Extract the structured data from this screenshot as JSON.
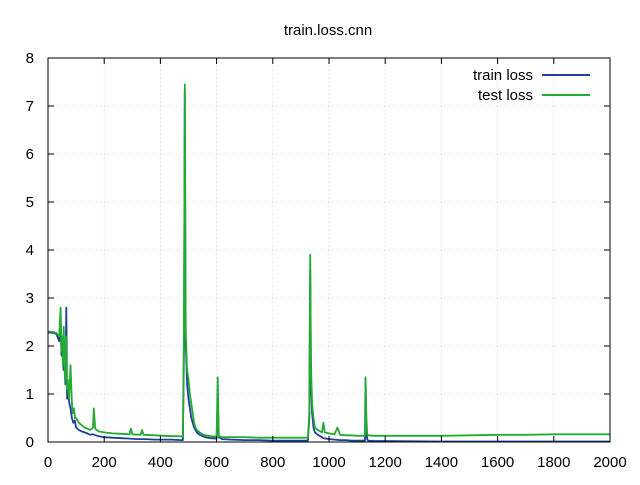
{
  "chart_data": {
    "type": "line",
    "title": "train.loss.cnn",
    "xlabel": "",
    "ylabel": "",
    "xlim": [
      0,
      2000
    ],
    "ylim": [
      0,
      8
    ],
    "xticks": [
      0,
      200,
      400,
      600,
      800,
      1000,
      1200,
      1400,
      1600,
      1800,
      2000
    ],
    "yticks": [
      0,
      1,
      2,
      3,
      4,
      5,
      6,
      7,
      8
    ],
    "grid": true,
    "legend_position": "top-right",
    "series": [
      {
        "name": "train loss",
        "color": "#1f3f99",
        "x": [
          0,
          10,
          20,
          30,
          40,
          45,
          48,
          52,
          55,
          58,
          62,
          65,
          68,
          72,
          76,
          80,
          85,
          90,
          95,
          100,
          110,
          120,
          130,
          140,
          150,
          160,
          170,
          180,
          200,
          230,
          260,
          290,
          320,
          350,
          380,
          410,
          440,
          470,
          480,
          484,
          487,
          490,
          495,
          500,
          505,
          510,
          515,
          520,
          525,
          530,
          540,
          550,
          560,
          580,
          600,
          604,
          608,
          620,
          650,
          700,
          750,
          800,
          850,
          900,
          925,
          930,
          933,
          936,
          940,
          945,
          950,
          960,
          975,
          980,
          1000,
          1020,
          1040,
          1060,
          1080,
          1100,
          1120,
          1128,
          1130,
          1133,
          1136,
          1140,
          1160,
          1200,
          1300,
          1400,
          1500,
          1600,
          1700,
          1800,
          1900,
          2000
        ],
        "y": [
          2.28,
          2.28,
          2.27,
          2.25,
          2.1,
          2.4,
          1.8,
          2.0,
          1.5,
          2.1,
          1.2,
          2.8,
          0.9,
          1.0,
          0.8,
          0.7,
          0.5,
          0.4,
          0.45,
          0.3,
          0.25,
          0.22,
          0.2,
          0.18,
          0.15,
          0.16,
          0.14,
          0.12,
          0.1,
          0.09,
          0.08,
          0.07,
          0.06,
          0.06,
          0.05,
          0.05,
          0.05,
          0.04,
          0.04,
          2.0,
          7.3,
          2.1,
          1.2,
          0.9,
          0.7,
          0.5,
          0.4,
          0.3,
          0.25,
          0.2,
          0.15,
          0.12,
          0.1,
          0.08,
          0.07,
          0.9,
          0.1,
          0.06,
          0.05,
          0.04,
          0.04,
          0.03,
          0.03,
          0.03,
          0.03,
          0.5,
          3.6,
          1.2,
          0.6,
          0.3,
          0.2,
          0.15,
          0.1,
          0.08,
          0.06,
          0.05,
          0.04,
          0.04,
          0.03,
          0.03,
          0.03,
          0.03,
          1.3,
          0.3,
          0.05,
          0.03,
          0.02,
          0.02,
          0.015,
          0.01,
          0.01,
          0.01,
          0.01,
          0.01,
          0.01,
          0.01
        ]
      },
      {
        "name": "test loss",
        "color": "#22aa33",
        "x": [
          0,
          10,
          20,
          30,
          40,
          45,
          48,
          50,
          53,
          56,
          60,
          64,
          67,
          70,
          75,
          80,
          85,
          88,
          92,
          96,
          100,
          110,
          120,
          130,
          140,
          150,
          160,
          163,
          168,
          180,
          200,
          230,
          260,
          290,
          295,
          300,
          330,
          335,
          340,
          380,
          410,
          440,
          470,
          480,
          484,
          487,
          490,
          495,
          500,
          505,
          510,
          515,
          520,
          525,
          530,
          540,
          550,
          560,
          580,
          600,
          604,
          608,
          620,
          650,
          700,
          750,
          800,
          850,
          900,
          925,
          930,
          933,
          936,
          940,
          945,
          950,
          960,
          975,
          980,
          985,
          1000,
          1020,
          1030,
          1040,
          1060,
          1080,
          1100,
          1120,
          1128,
          1130,
          1133,
          1136,
          1140,
          1160,
          1200,
          1300,
          1400,
          1500,
          1600,
          1700,
          1800,
          1900,
          2000
        ],
        "y": [
          2.3,
          2.3,
          2.29,
          2.27,
          2.2,
          2.8,
          1.9,
          2.2,
          1.6,
          2.4,
          1.3,
          2.2,
          1.1,
          1.3,
          0.9,
          1.6,
          0.8,
          0.6,
          0.7,
          0.5,
          0.5,
          0.4,
          0.35,
          0.3,
          0.28,
          0.25,
          0.3,
          0.7,
          0.28,
          0.22,
          0.2,
          0.18,
          0.17,
          0.16,
          0.28,
          0.16,
          0.15,
          0.25,
          0.15,
          0.14,
          0.13,
          0.12,
          0.12,
          0.11,
          2.5,
          7.45,
          2.3,
          1.5,
          1.3,
          1.0,
          0.8,
          0.6,
          0.4,
          0.3,
          0.25,
          0.2,
          0.16,
          0.14,
          0.12,
          0.11,
          1.35,
          0.12,
          0.1,
          0.1,
          0.1,
          0.09,
          0.09,
          0.09,
          0.09,
          0.09,
          0.6,
          3.9,
          1.6,
          0.8,
          0.5,
          0.3,
          0.25,
          0.2,
          0.4,
          0.2,
          0.18,
          0.16,
          0.3,
          0.15,
          0.14,
          0.14,
          0.13,
          0.13,
          0.13,
          1.35,
          0.5,
          0.16,
          0.14,
          0.13,
          0.13,
          0.13,
          0.13,
          0.14,
          0.15,
          0.15,
          0.16,
          0.16,
          0.16
        ]
      }
    ]
  }
}
